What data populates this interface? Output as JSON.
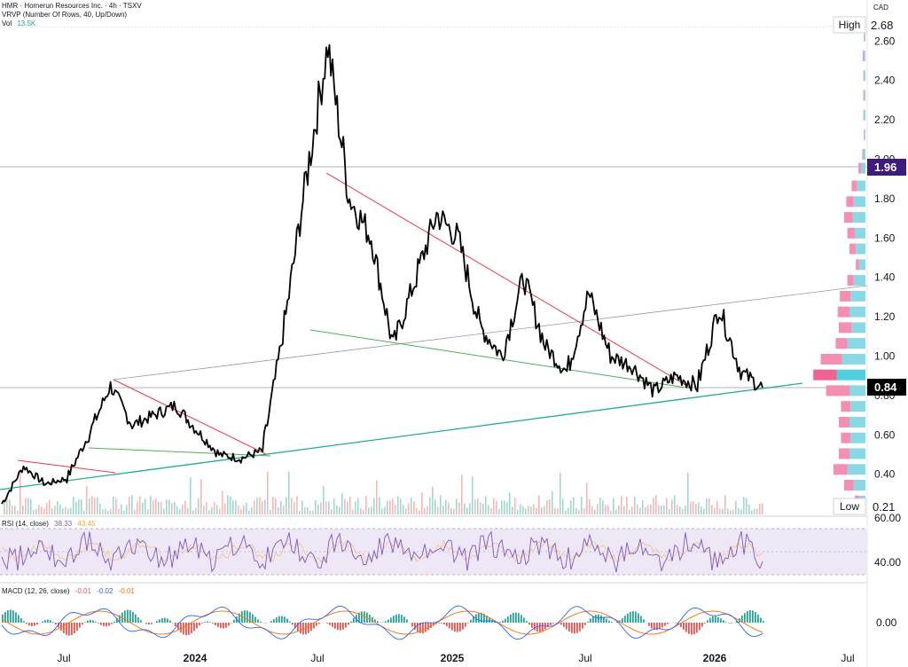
{
  "header": {
    "title": "HMR · Homerun Resources Inc. · 4h · TSXV",
    "vrvp": "VRVP (Number Of Rows, 40, Up/Down)",
    "vol_label": "Vol",
    "vol_value": "13.5K",
    "currency": "CAD"
  },
  "price_labels": {
    "high_text": "High",
    "high_value": "2.68",
    "low_text": "Low",
    "low_value": "0.21",
    "current": "0.84",
    "marker": "1.96"
  },
  "rsi": {
    "label": "RSI (14, close)",
    "value1": "38.33",
    "value2": "43.45",
    "axis_label": "40.00",
    "top_label": "60.00"
  },
  "macd": {
    "label": "MACD (12, 26, close)",
    "v1": "-0.01",
    "v2": "-0.02",
    "v3": "-0.01",
    "axis_label": "0.00"
  },
  "colors": {
    "price": "#000000",
    "up": "#26a69a",
    "down": "#ef5350",
    "teal_line": "#22ab94",
    "green_line": "#4caf50",
    "red_line": "#f23645",
    "vp_up": "#8ad8e6",
    "vp_down": "#f48fb1",
    "rsi": "#7e57c2",
    "marker_bg": "#3f1b7a"
  },
  "chart_data": {
    "type": "line",
    "title": "HMR · Homerun Resources Inc. · 4h · TSXV",
    "x_ticks": [
      "Jul",
      "2024",
      "Jul",
      "2025",
      "Jul",
      "2026",
      "Jul"
    ],
    "y_ticks": [
      "0.40",
      "0.60",
      "0.80",
      "1.00",
      "1.20",
      "1.40",
      "1.60",
      "1.80",
      "2.00",
      "2.20",
      "2.40",
      "2.60"
    ],
    "y_range": [
      0.21,
      2.68
    ],
    "series": [
      {
        "x": [
          "2023-04",
          "2023-05",
          "2023-06",
          "2023-07",
          "2023-08",
          "2023-09",
          "2023-10",
          "2023-11",
          "2023-12",
          "2024-01",
          "2024-02",
          "2024-03",
          "2024-04",
          "2024-05",
          "2024-06",
          "2024-07",
          "2024-08",
          "2024-09",
          "2024-10",
          "2024-11",
          "2024-12",
          "2025-01",
          "2025-02",
          "2025-03",
          "2025-04",
          "2025-05",
          "2025-06",
          "2025-07",
          "2025-08",
          "2025-09",
          "2025-10",
          "2025-11",
          "2025-12",
          "2026-01",
          "2026-02",
          "2026-03"
        ],
        "values": [
          0.25,
          0.44,
          0.35,
          0.38,
          0.6,
          0.85,
          0.65,
          0.7,
          0.75,
          0.62,
          0.5,
          0.48,
          0.52,
          1.15,
          1.9,
          2.58,
          1.8,
          1.6,
          1.05,
          1.38,
          1.72,
          1.6,
          1.15,
          1.0,
          1.4,
          1.05,
          0.92,
          1.32,
          1.0,
          0.95,
          0.82,
          0.9,
          0.85,
          1.25,
          0.92,
          0.84
        ]
      }
    ]
  }
}
